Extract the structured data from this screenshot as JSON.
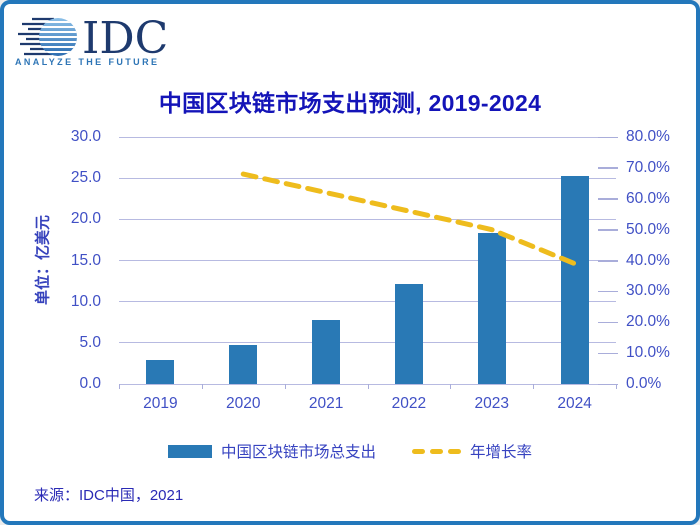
{
  "logo": {
    "text": "IDC",
    "tagline": "ANALYZE THE FUTURE"
  },
  "title": "中国区块链市场支出预测, 2019-2024",
  "chart_data": {
    "type": "bar",
    "subtype": "combo-bar-plus-dashed-line",
    "title": "中国区块链市场支出预测, 2019-2024",
    "categories": [
      "2019",
      "2020",
      "2021",
      "2022",
      "2023",
      "2024"
    ],
    "series": [
      {
        "name": "中国区块链市场总支出",
        "type": "bar",
        "axis": "left",
        "color": "#2979B5",
        "values": [
          2.9,
          4.7,
          7.8,
          12.2,
          18.3,
          25.3
        ]
      },
      {
        "name": "年增长率",
        "type": "dashed-line",
        "axis": "right",
        "unit": "%",
        "color": "#EEBC1D",
        "values": [
          null,
          68,
          62,
          56,
          50,
          39
        ]
      }
    ],
    "left_axis": {
      "title": "单位：亿美元",
      "min": 0,
      "max": 30,
      "step": 5,
      "ticks": [
        "0.0",
        "5.0",
        "10.0",
        "15.0",
        "20.0",
        "25.0",
        "30.0"
      ]
    },
    "right_axis": {
      "min": 0,
      "max": 80,
      "step": 10,
      "ticks": [
        "0.0%",
        "10.0%",
        "20.0%",
        "30.0%",
        "40.0%",
        "50.0%",
        "60.0%",
        "70.0%",
        "80.0%"
      ]
    },
    "grid": true,
    "legend_position": "bottom"
  },
  "legend": {
    "items": [
      {
        "label": "中国区块链市场总支出",
        "swatch": "bar",
        "color": "#2979B5"
      },
      {
        "label": "年增长率",
        "swatch": "dashed-line",
        "color": "#EEBC1D"
      }
    ]
  },
  "source": "来源：IDC中国，2021",
  "colors": {
    "border": "#2377BB",
    "bar_blue": "#2979B5",
    "line_yellow": "#EEBC1D",
    "title_blue": "#1414B8",
    "tick_blue": "#4050C5",
    "grid": "#B7BAE1",
    "logo_navy": "#1E3A6E",
    "tagline_blue": "#2E75B6"
  }
}
